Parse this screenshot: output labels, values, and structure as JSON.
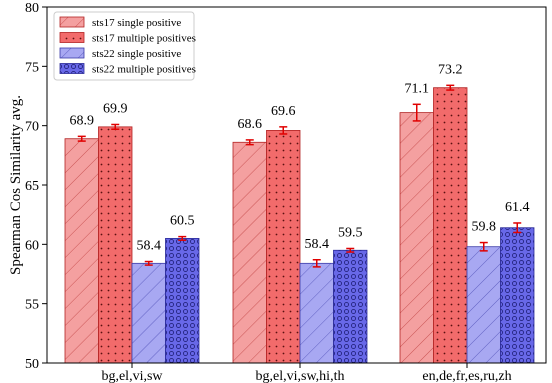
{
  "chart_data": {
    "type": "bar",
    "title": "",
    "xlabel": "",
    "ylabel": "Spearman Cos Similarity avg.",
    "ylim": [
      50,
      80
    ],
    "yticks": [
      50,
      55,
      60,
      65,
      70,
      75,
      80
    ],
    "grid": false,
    "legend_position": "top-left",
    "categories": [
      "bg,el,vi,sw",
      "bg,el,vi,sw,hi,th",
      "en,de,fr,es,ru,zh"
    ],
    "series": [
      {
        "name": "sts17 single positive",
        "values": [
          68.9,
          68.6,
          71.1
        ],
        "errors": [
          0.2,
          0.2,
          0.7
        ],
        "color": "#f4a0a0",
        "edge": "#b22222",
        "pattern": "diag-hatch"
      },
      {
        "name": "sts17 multiple positives",
        "values": [
          69.9,
          69.6,
          73.2
        ],
        "errors": [
          0.2,
          0.3,
          0.2
        ],
        "color": "#f26b6b",
        "edge": "#b22222",
        "pattern": "dots"
      },
      {
        "name": "sts22 single positive",
        "values": [
          58.4,
          58.4,
          59.8
        ],
        "errors": [
          0.15,
          0.3,
          0.35
        ],
        "color": "#a8a8f2",
        "edge": "#3a3aa8",
        "pattern": "diag-hatch"
      },
      {
        "name": "sts22 multiple positives",
        "values": [
          60.5,
          59.5,
          61.4
        ],
        "errors": [
          0.15,
          0.15,
          0.4
        ],
        "color": "#6868e8",
        "edge": "#2a2a98",
        "pattern": "circles"
      }
    ],
    "data_labels": [
      [
        "68.9",
        "68.6",
        "71.1"
      ],
      [
        "69.9",
        "69.6",
        "73.2"
      ],
      [
        "58.4",
        "58.4",
        "59.8"
      ],
      [
        "60.5",
        "59.5",
        "61.4"
      ]
    ],
    "error_bar_color": "#e00000"
  }
}
